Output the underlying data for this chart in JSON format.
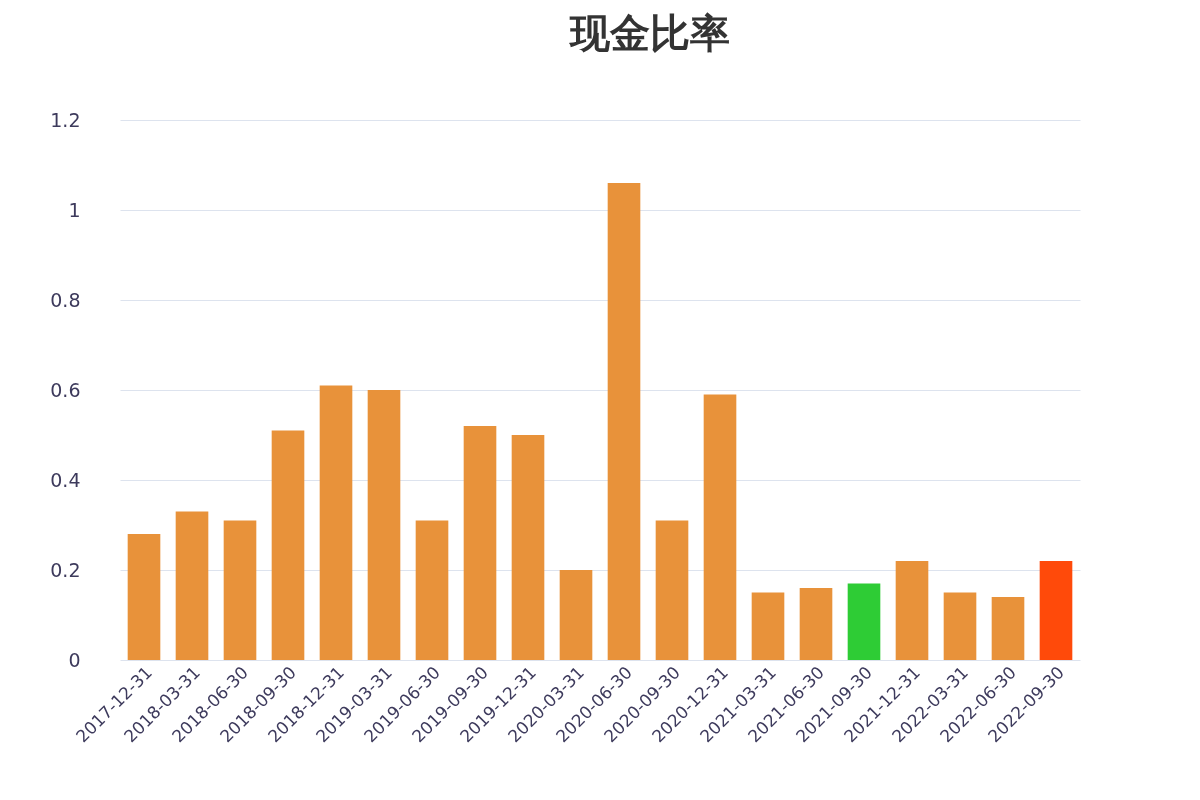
{
  "chart_data": {
    "type": "bar",
    "title": "现金比率",
    "categories": [
      "2017-12-31",
      "2018-03-31",
      "2018-06-30",
      "2018-09-30",
      "2018-12-31",
      "2019-03-31",
      "2019-06-30",
      "2019-09-30",
      "2019-12-31",
      "2020-03-31",
      "2020-06-30",
      "2020-09-30",
      "2020-12-31",
      "2021-03-31",
      "2021-06-30",
      "2021-09-30",
      "2021-12-31",
      "2022-03-31",
      "2022-06-30",
      "2022-09-30"
    ],
    "values": [
      0.28,
      0.33,
      0.31,
      0.51,
      0.61,
      0.6,
      0.31,
      0.52,
      0.5,
      0.2,
      1.06,
      0.31,
      0.59,
      0.15,
      0.16,
      0.17,
      0.22,
      0.15,
      0.14,
      0.22
    ],
    "colors": [
      "#e8923a",
      "#e8923a",
      "#e8923a",
      "#e8923a",
      "#e8923a",
      "#e8923a",
      "#e8923a",
      "#e8923a",
      "#e8923a",
      "#e8923a",
      "#e8923a",
      "#e8923a",
      "#e8923a",
      "#e8923a",
      "#e8923a",
      "#2ecc35",
      "#e8923a",
      "#e8923a",
      "#e8923a",
      "#ff4a0a"
    ],
    "ylim": [
      0,
      1.2
    ],
    "yticks": [
      0,
      0.2,
      0.4,
      0.6,
      0.8,
      1,
      1.2
    ],
    "grid": "y"
  }
}
